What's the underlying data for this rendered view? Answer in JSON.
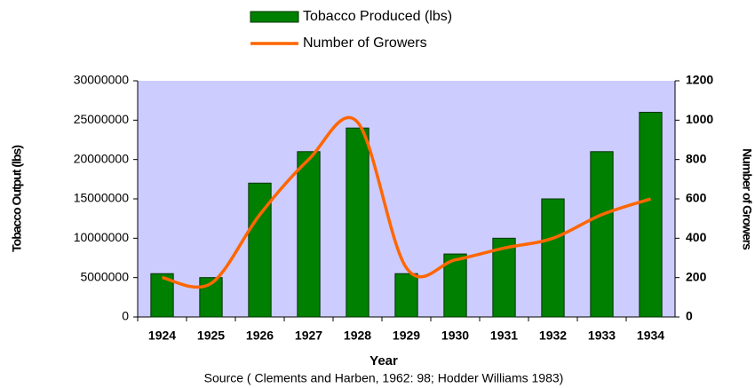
{
  "chart_data": {
    "type": "bar_line",
    "categories": [
      "1924",
      "1925",
      "1926",
      "1927",
      "1928",
      "1929",
      "1930",
      "1931",
      "1932",
      "1933",
      "1934"
    ],
    "series": [
      {
        "name": "Tobacco Produced (lbs)",
        "type": "bar",
        "color": "#008000",
        "values": [
          5500000,
          5000000,
          17000000,
          21000000,
          24000000,
          5500000,
          8000000,
          10000000,
          15000000,
          21000000,
          26000000
        ]
      },
      {
        "name": "Number of Growers",
        "type": "line",
        "axis": "y2",
        "color": "#ff6600",
        "values": [
          200,
          170,
          520,
          800,
          990,
          250,
          290,
          350,
          400,
          520,
          600
        ]
      }
    ],
    "x_label": "Year",
    "y_label": "Tobacco Output (lbs)",
    "y2_label": "Number of Growers",
    "source": "Source ( Clements and Harben, 1962: 98; Hodder Williams 1983)",
    "ylim": [
      0,
      30000000
    ],
    "yticks": [
      0,
      5000000,
      10000000,
      15000000,
      20000000,
      25000000,
      30000000
    ],
    "y2lim": [
      0,
      1200
    ],
    "y2ticks": [
      0,
      200,
      400,
      600,
      800,
      1000,
      1200
    ],
    "plot_background": "#ccccff",
    "legend": "top"
  }
}
